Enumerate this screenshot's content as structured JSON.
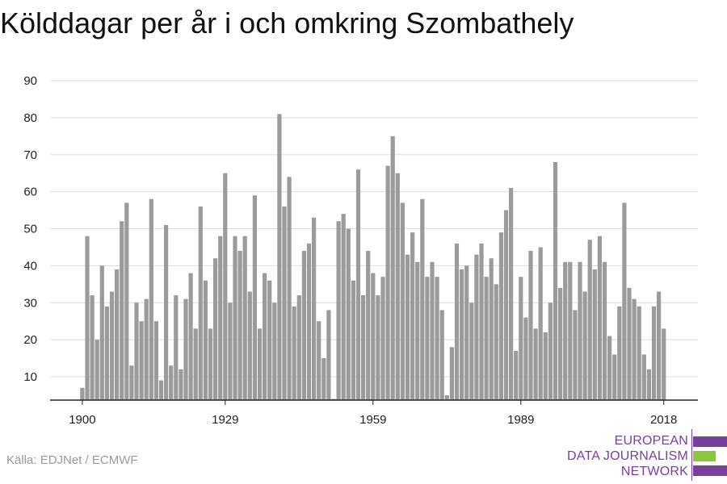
{
  "chart_data": {
    "type": "bar",
    "title": "Kölddagar per år i och omkring Szombathely",
    "xlabel": "",
    "ylabel": "",
    "ylim": [
      3,
      90
    ],
    "xlim": [
      1899,
      2020
    ],
    "yticks": [
      10,
      20,
      30,
      40,
      50,
      60,
      70,
      80,
      90
    ],
    "xticks": [
      1900,
      1929,
      1959,
      1989,
      2018
    ],
    "grid": true,
    "bar_color": "#9b9b9b",
    "x": [
      1900,
      1901,
      1902,
      1903,
      1904,
      1905,
      1906,
      1907,
      1908,
      1909,
      1910,
      1911,
      1912,
      1913,
      1914,
      1915,
      1916,
      1917,
      1918,
      1919,
      1920,
      1921,
      1922,
      1923,
      1924,
      1925,
      1926,
      1927,
      1928,
      1929,
      1930,
      1931,
      1932,
      1933,
      1934,
      1935,
      1936,
      1937,
      1938,
      1939,
      1940,
      1941,
      1942,
      1943,
      1944,
      1945,
      1946,
      1947,
      1948,
      1949,
      1950,
      1951,
      1952,
      1953,
      1954,
      1955,
      1956,
      1957,
      1958,
      1959,
      1960,
      1961,
      1962,
      1963,
      1964,
      1965,
      1966,
      1967,
      1968,
      1969,
      1970,
      1971,
      1972,
      1973,
      1974,
      1975,
      1976,
      1977,
      1978,
      1979,
      1980,
      1981,
      1982,
      1983,
      1984,
      1985,
      1986,
      1987,
      1988,
      1989,
      1990,
      1991,
      1992,
      1993,
      1994,
      1995,
      1996,
      1997,
      1998,
      1999,
      2000,
      2001,
      2002,
      2003,
      2004,
      2005,
      2006,
      2007,
      2008,
      2009,
      2010,
      2011,
      2012,
      2013,
      2014,
      2015,
      2016,
      2017,
      2018
    ],
    "values": [
      7,
      48,
      32,
      20,
      40,
      29,
      33,
      39,
      52,
      57,
      13,
      30,
      25,
      31,
      58,
      25,
      9,
      51,
      13,
      32,
      12,
      31,
      38,
      23,
      56,
      36,
      23,
      42,
      48,
      65,
      30,
      48,
      44,
      48,
      33,
      59,
      23,
      38,
      36,
      30,
      81,
      56,
      64,
      29,
      32,
      44,
      46,
      53,
      25,
      15,
      28,
      4,
      52,
      54,
      50,
      36,
      66,
      32,
      44,
      38,
      32,
      37,
      67,
      75,
      65,
      57,
      43,
      49,
      41,
      58,
      37,
      41,
      37,
      28,
      5,
      18,
      46,
      39,
      40,
      30,
      43,
      46,
      37,
      42,
      35,
      49,
      55,
      61,
      17,
      37,
      26,
      44,
      23,
      45,
      22,
      30,
      68,
      34,
      41,
      41,
      28,
      41,
      33,
      47,
      39,
      48,
      41,
      21,
      16,
      29,
      57,
      34,
      31,
      29,
      16,
      12,
      29,
      33,
      23
    ]
  },
  "source": "Källa: EDJNet / ECMWF",
  "logo": {
    "line1": "EUROPEAN",
    "line2": "DATA JOURNALISM",
    "line3": "NETWORK"
  }
}
